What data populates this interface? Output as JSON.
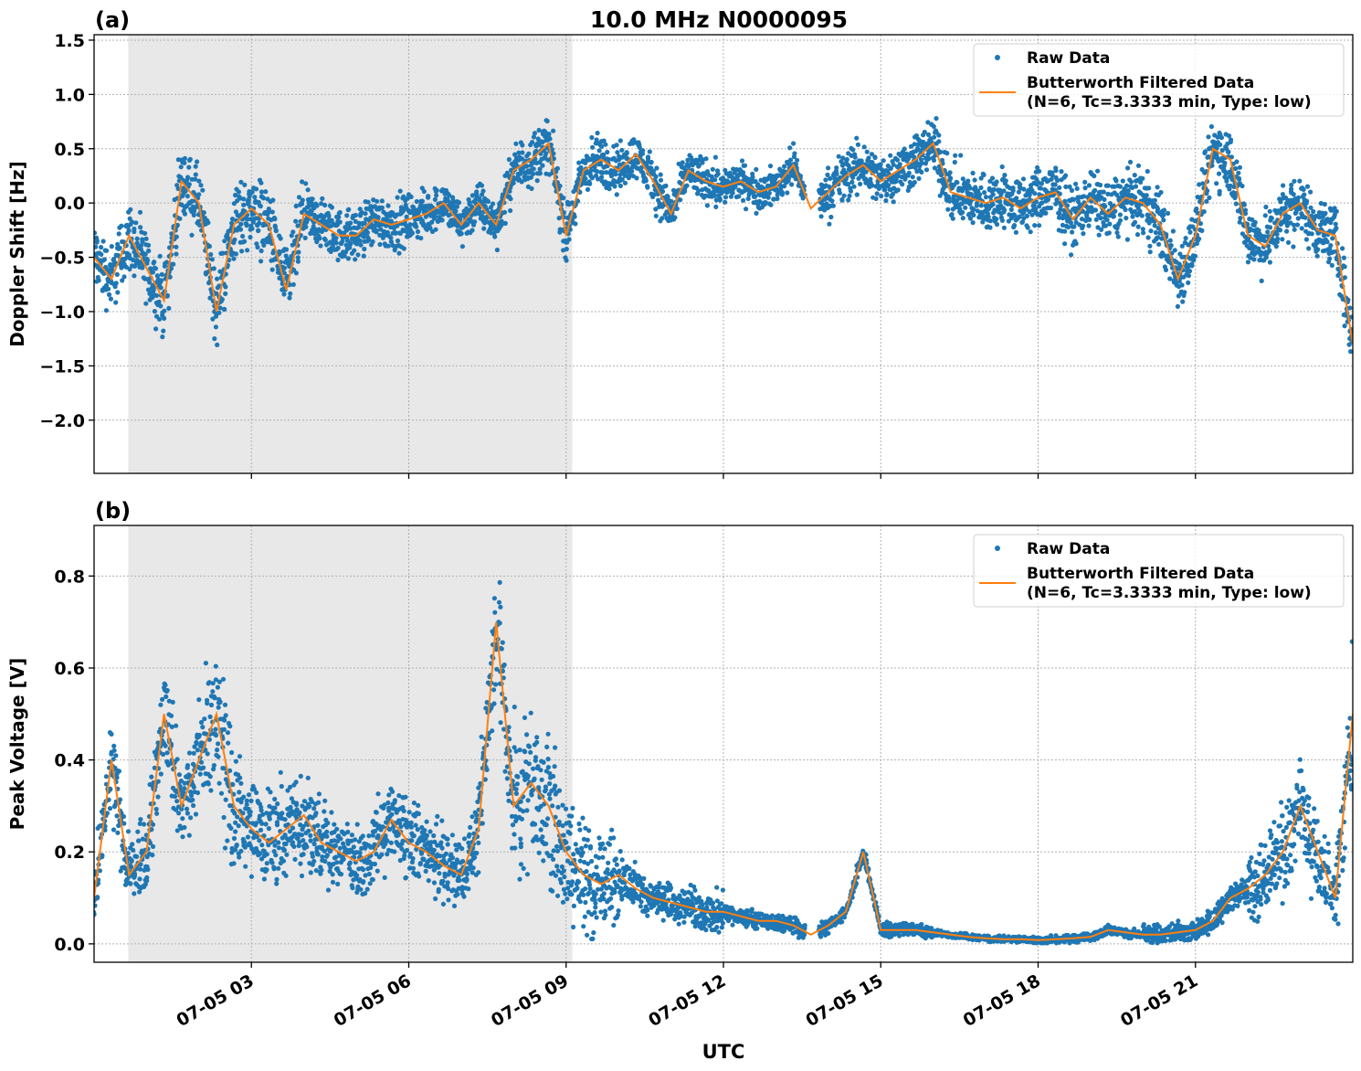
{
  "chart_data": {
    "title": "10.0 MHz N0000095",
    "xlabel": "UTC",
    "x_range": [
      "07-05 00:00",
      "07-06 00:00"
    ],
    "x_tick_labels": [
      "07-05 03",
      "07-05 06",
      "07-05 09",
      "07-05 12",
      "07-05 15",
      "07-05 18",
      "07-05 21"
    ],
    "x_tick_hours": [
      3,
      6,
      9,
      12,
      15,
      18,
      21
    ],
    "shaded_interval": [
      "00:39",
      "09:07"
    ],
    "shade_color": "#e8e8e8",
    "grid": true,
    "legend_placement": "upper-right",
    "colors": {
      "raw": "#1f77b4",
      "filtered": "#ff7f0e"
    },
    "time": [
      "00:00",
      "00:20",
      "00:40",
      "01:00",
      "01:20",
      "01:40",
      "02:00",
      "02:20",
      "02:40",
      "03:00",
      "03:20",
      "03:40",
      "04:00",
      "04:20",
      "04:40",
      "05:00",
      "05:20",
      "05:40",
      "06:00",
      "06:20",
      "06:40",
      "07:00",
      "07:20",
      "07:40",
      "08:00",
      "08:20",
      "08:40",
      "09:00",
      "09:20",
      "09:40",
      "10:00",
      "10:20",
      "10:40",
      "11:00",
      "11:20",
      "11:40",
      "12:00",
      "12:20",
      "12:40",
      "13:00",
      "13:20",
      "13:40",
      "14:00",
      "14:20",
      "14:40",
      "15:00",
      "15:20",
      "15:40",
      "16:00",
      "16:20",
      "16:40",
      "17:00",
      "17:20",
      "17:40",
      "18:00",
      "18:20",
      "18:40",
      "19:00",
      "19:20",
      "19:40",
      "20:00",
      "20:20",
      "20:40",
      "21:00",
      "21:20",
      "21:40",
      "22:00",
      "22:20",
      "22:40",
      "23:00",
      "23:20",
      "23:40",
      "24:00"
    ],
    "panels": [
      {
        "label": "(a)",
        "type": "scatter+line",
        "ylabel": "Doppler Shift [Hz]",
        "ylim": [
          -2.49,
          1.55
        ],
        "y_ticks": [
          1.5,
          1.0,
          0.5,
          0.0,
          -0.5,
          -1.0,
          -1.5,
          -2.0
        ],
        "y_tick_labels": [
          "1.5",
          "1.0",
          "0.5",
          "0.0",
          "−0.5",
          "−1.0",
          "−1.5",
          "−2.0"
        ],
        "legend": {
          "raw": "Raw Data",
          "filtered_line1": "Butterworth Filtered Data",
          "filtered_line2": "(N=6, Tc=3.3333 min, Type: low)"
        },
        "filtered": [
          -0.5,
          -0.7,
          -0.3,
          -0.6,
          -0.9,
          0.2,
          0.0,
          -1.0,
          -0.2,
          -0.05,
          -0.2,
          -0.8,
          -0.1,
          -0.2,
          -0.3,
          -0.3,
          -0.15,
          -0.2,
          -0.15,
          -0.1,
          0.0,
          -0.2,
          0.0,
          -0.2,
          0.3,
          0.4,
          0.55,
          -0.3,
          0.3,
          0.4,
          0.3,
          0.45,
          0.2,
          -0.1,
          0.3,
          0.2,
          0.15,
          0.2,
          0.1,
          0.15,
          0.35,
          -0.05,
          0.1,
          0.25,
          0.35,
          0.2,
          0.3,
          0.4,
          0.55,
          0.1,
          0.05,
          0.0,
          0.05,
          -0.05,
          0.05,
          0.1,
          -0.15,
          0.05,
          -0.1,
          0.05,
          0.0,
          -0.2,
          -0.7,
          -0.3,
          0.5,
          0.4,
          -0.3,
          -0.4,
          -0.1,
          0.0,
          -0.25,
          -0.3,
          -1.3
        ],
        "raw_spread_2h": [
          0.45,
          0.5,
          0.35,
          0.3,
          0.35,
          0.3,
          0.25,
          0.35,
          0.4,
          0.4,
          0.45,
          0.4
        ]
      },
      {
        "label": "(b)",
        "type": "scatter+line",
        "ylabel": "Peak Voltage [V]",
        "ylim": [
          -0.04,
          0.91
        ],
        "y_ticks": [
          0.8,
          0.6,
          0.4,
          0.2,
          0.0
        ],
        "y_tick_labels": [
          "0.8",
          "0.6",
          "0.4",
          "0.2",
          "0.0"
        ],
        "legend": {
          "raw": "Raw Data",
          "filtered_line1": "Butterworth Filtered Data",
          "filtered_line2": "(N=6, Tc=3.3333 min, Type: low)"
        },
        "filtered": [
          0.1,
          0.4,
          0.15,
          0.2,
          0.5,
          0.3,
          0.4,
          0.5,
          0.3,
          0.25,
          0.22,
          0.25,
          0.28,
          0.22,
          0.2,
          0.18,
          0.2,
          0.27,
          0.22,
          0.2,
          0.17,
          0.15,
          0.25,
          0.7,
          0.3,
          0.35,
          0.3,
          0.2,
          0.15,
          0.13,
          0.15,
          0.12,
          0.1,
          0.09,
          0.08,
          0.07,
          0.07,
          0.06,
          0.05,
          0.05,
          0.04,
          0.02,
          0.04,
          0.07,
          0.2,
          0.03,
          0.03,
          0.03,
          0.025,
          0.02,
          0.015,
          0.012,
          0.01,
          0.01,
          0.008,
          0.01,
          0.012,
          0.015,
          0.03,
          0.025,
          0.02,
          0.02,
          0.025,
          0.03,
          0.05,
          0.1,
          0.12,
          0.15,
          0.2,
          0.3,
          0.2,
          0.1,
          0.5
        ],
        "raw_spread_2h": [
          0.12,
          0.15,
          0.12,
          0.12,
          0.2,
          0.08,
          0.04,
          0.03,
          0.015,
          0.02,
          0.05,
          0.15
        ]
      }
    ]
  }
}
